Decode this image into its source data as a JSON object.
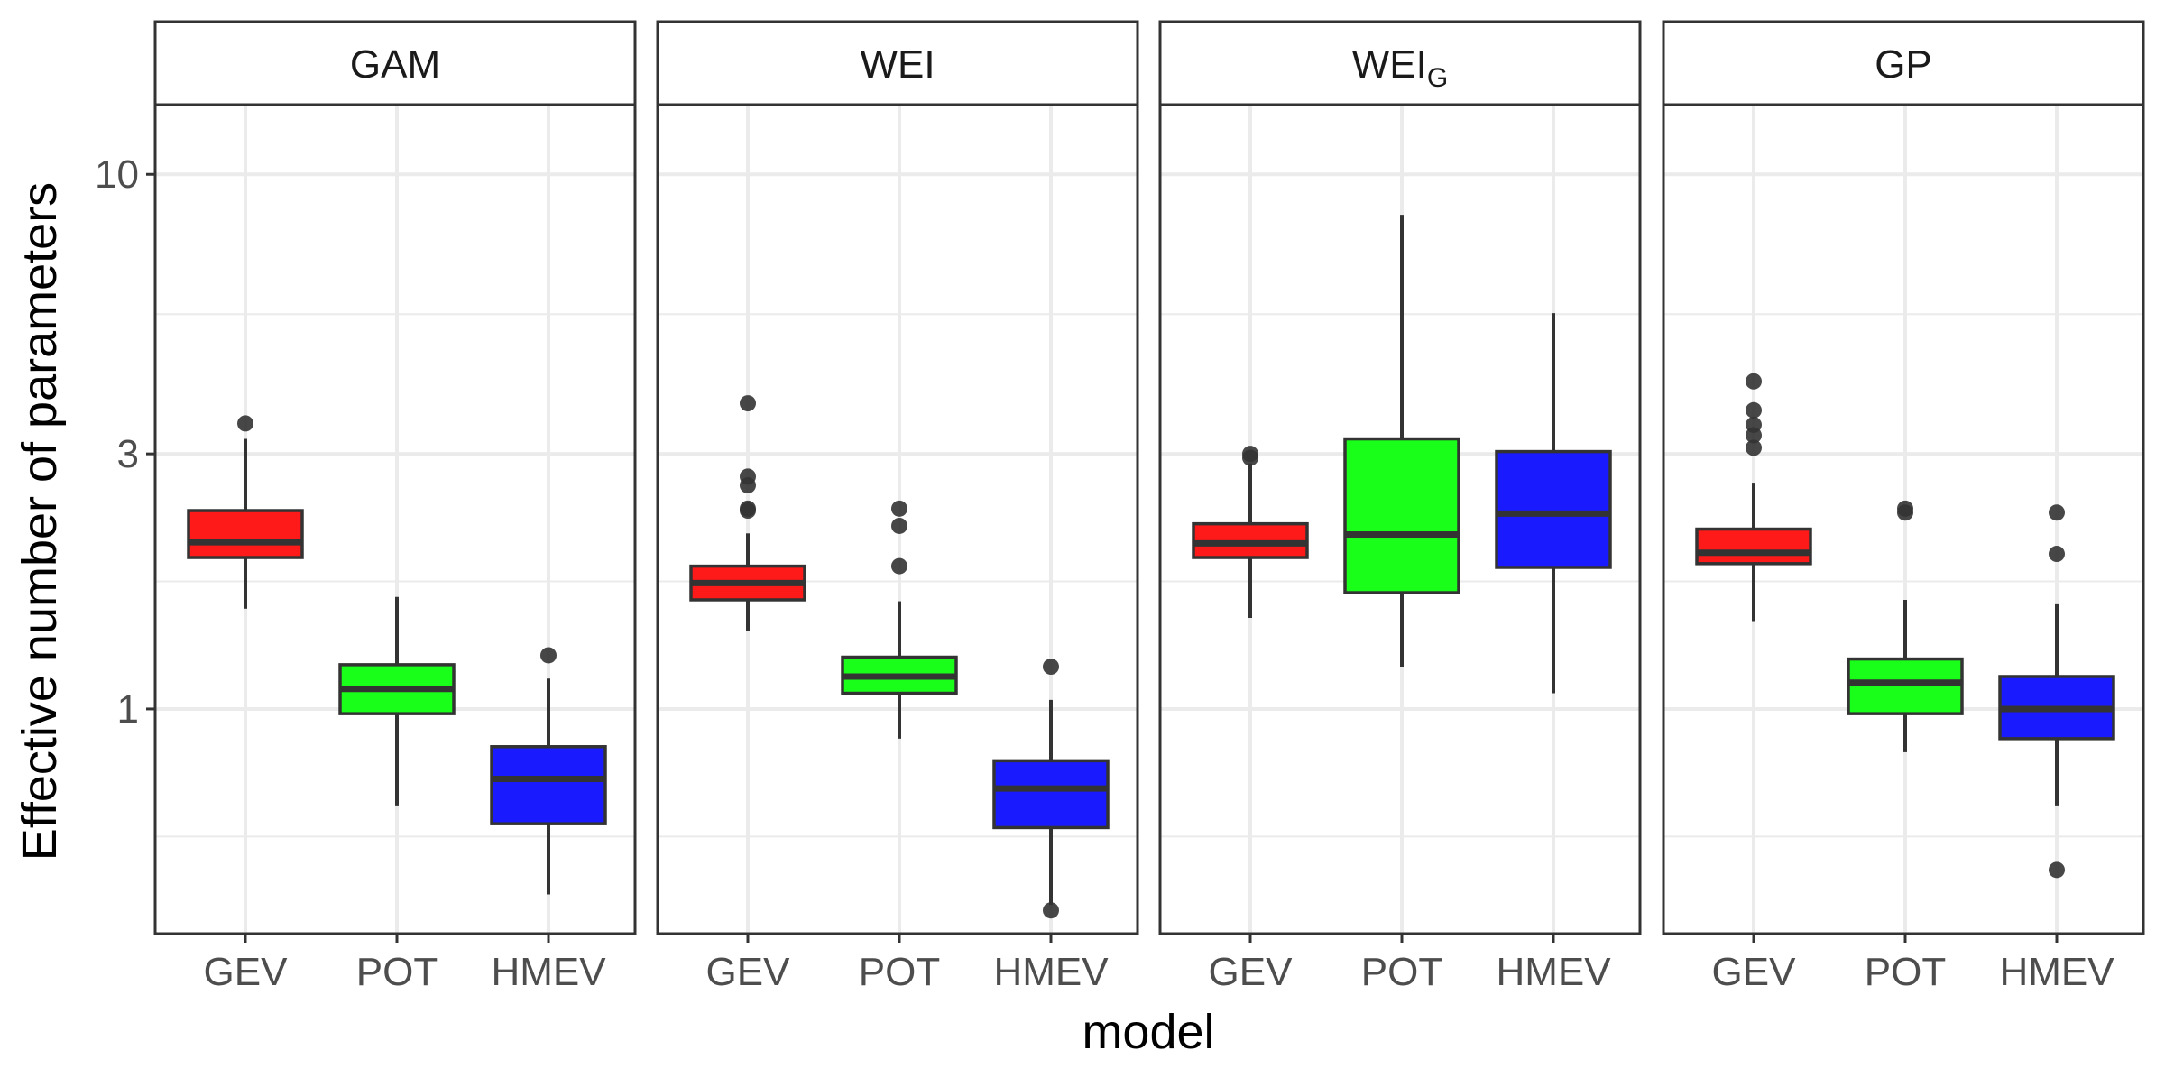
{
  "chart_data": {
    "type": "boxplot",
    "ylabel": "Effective number of parameters",
    "xlabel": "model",
    "yscale": "log",
    "ylim": [
      0.38,
      13.5
    ],
    "yticks": [
      1,
      3,
      10
    ],
    "ytick_labels": [
      "1",
      "3",
      "10"
    ],
    "categories": [
      "GEV",
      "POT",
      "HMEV"
    ],
    "colors": {
      "GEV": "#ff1a1a",
      "POT": "#1aff1a",
      "HMEV": "#1a1aff"
    },
    "grid": true,
    "panels": [
      {
        "strip": "GAM",
        "boxes": [
          {
            "category": "GEV",
            "whisker_low": 1.54,
            "q1": 1.92,
            "median": 2.05,
            "q3": 2.35,
            "whisker_high": 3.2,
            "outliers": [
              3.42
            ]
          },
          {
            "category": "POT",
            "whisker_low": 0.66,
            "q1": 0.98,
            "median": 1.09,
            "q3": 1.21,
            "whisker_high": 1.62,
            "outliers": []
          },
          {
            "category": "HMEV",
            "whisker_low": 0.45,
            "q1": 0.61,
            "median": 0.74,
            "q3": 0.85,
            "whisker_high": 1.14,
            "outliers": [
              1.26
            ]
          }
        ]
      },
      {
        "strip": "WEI",
        "boxes": [
          {
            "category": "GEV",
            "whisker_low": 1.4,
            "q1": 1.6,
            "median": 1.72,
            "q3": 1.85,
            "whisker_high": 2.13,
            "outliers": [
              2.35,
              2.37,
              2.62,
              2.72,
              3.73
            ]
          },
          {
            "category": "POT",
            "whisker_low": 0.88,
            "q1": 1.07,
            "median": 1.15,
            "q3": 1.25,
            "whisker_high": 1.59,
            "outliers": [
              1.85,
              2.2,
              2.37
            ]
          },
          {
            "category": "HMEV",
            "whisker_low": 0.43,
            "q1": 0.6,
            "median": 0.71,
            "q3": 0.8,
            "whisker_high": 1.04,
            "outliers": [
              0.42,
              1.2
            ]
          }
        ]
      },
      {
        "strip": "WEIG",
        "strip_main": "WEI",
        "strip_sub": "G",
        "boxes": [
          {
            "category": "GEV",
            "whisker_low": 1.48,
            "q1": 1.92,
            "median": 2.04,
            "q3": 2.22,
            "whisker_high": 2.88,
            "outliers": [
              2.95,
              3.0
            ]
          },
          {
            "category": "POT",
            "whisker_low": 1.2,
            "q1": 1.65,
            "median": 2.12,
            "q3": 3.2,
            "whisker_high": 8.4,
            "outliers": []
          },
          {
            "category": "HMEV",
            "whisker_low": 1.07,
            "q1": 1.84,
            "median": 2.32,
            "q3": 3.03,
            "whisker_high": 5.5,
            "outliers": []
          }
        ]
      },
      {
        "strip": "GP",
        "boxes": [
          {
            "category": "GEV",
            "whisker_low": 1.46,
            "q1": 1.87,
            "median": 1.96,
            "q3": 2.17,
            "whisker_high": 2.65,
            "outliers": [
              3.08,
              3.25,
              3.4,
              3.62,
              4.1
            ]
          },
          {
            "category": "POT",
            "whisker_low": 0.83,
            "q1": 0.98,
            "median": 1.12,
            "q3": 1.24,
            "whisker_high": 1.6,
            "outliers": [
              2.33,
              2.37
            ]
          },
          {
            "category": "HMEV",
            "whisker_low": 0.66,
            "q1": 0.88,
            "median": 1.0,
            "q3": 1.15,
            "whisker_high": 1.57,
            "outliers": [
              0.5,
              1.95,
              2.33
            ]
          }
        ]
      }
    ]
  }
}
